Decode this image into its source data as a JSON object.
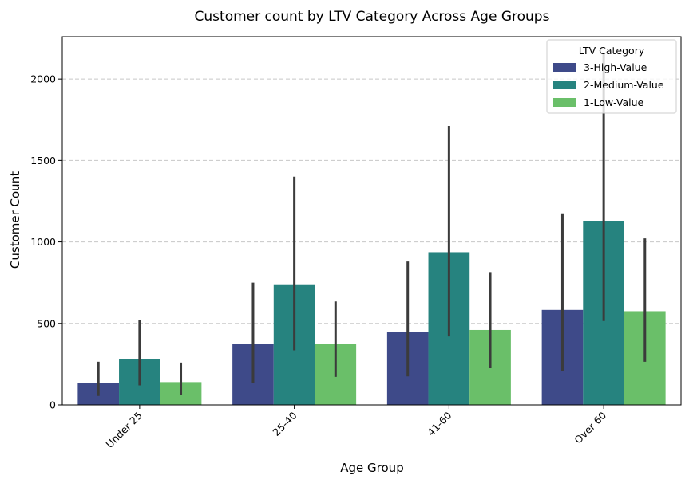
{
  "chart_data": {
    "type": "bar",
    "title": "Customer count by LTV Category Across Age Groups",
    "xlabel": "Age Group",
    "ylabel": "Customer Count",
    "categories": [
      "Under 25",
      "25-40",
      "41-60",
      "Over 60"
    ],
    "ylim": [
      0,
      2260
    ],
    "yticks": [
      0,
      500,
      1000,
      1500,
      2000
    ],
    "grid": "horizontal-dashed",
    "legend": {
      "title": "LTV Category",
      "placement": "top-right"
    },
    "series": [
      {
        "name": "3-High-Value",
        "color": "#3e4a89",
        "values": [
          135,
          372,
          450,
          583
        ],
        "ci_low": [
          55,
          135,
          175,
          210
        ],
        "ci_high": [
          265,
          750,
          880,
          1175
        ]
      },
      {
        "name": "2-Medium-Value",
        "color": "#26837f",
        "values": [
          283,
          740,
          937,
          1130
        ],
        "ci_low": [
          120,
          335,
          420,
          515
        ],
        "ci_high": [
          520,
          1400,
          1712,
          2160
        ]
      },
      {
        "name": "1-Low-Value",
        "color": "#6abf69",
        "values": [
          140,
          372,
          460,
          575
        ],
        "ci_low": [
          62,
          172,
          225,
          265
        ],
        "ci_high": [
          260,
          635,
          815,
          1022
        ]
      }
    ]
  }
}
